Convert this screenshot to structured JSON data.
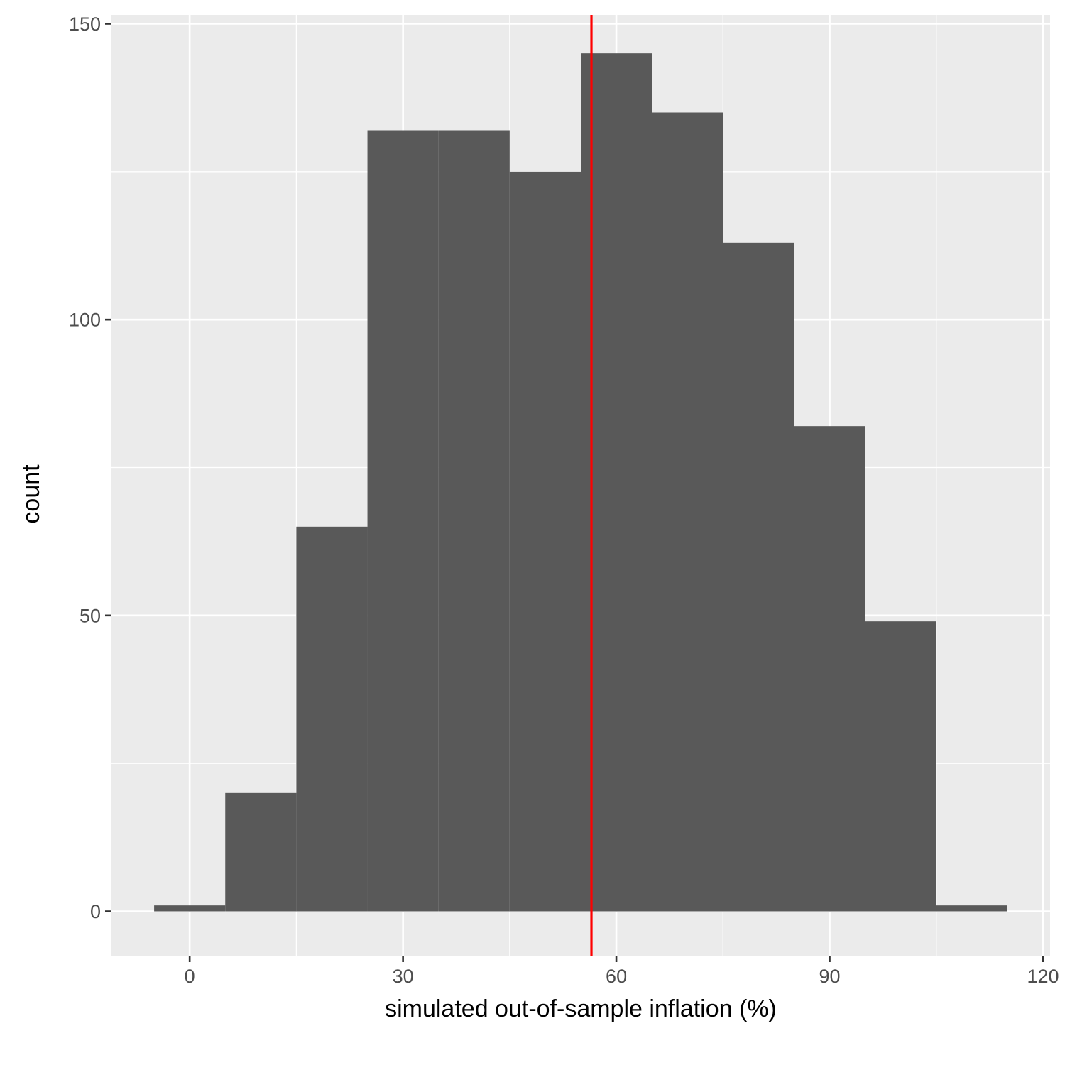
{
  "chart_data": {
    "type": "bar",
    "xlabel": "simulated out-of-sample inflation (%)",
    "ylabel": "count",
    "xlim": [
      -11,
      121
    ],
    "ylim": [
      -7.5,
      151.5
    ],
    "x_ticks": [
      0,
      30,
      60,
      90,
      120
    ],
    "y_ticks": [
      0,
      50,
      100,
      150
    ],
    "bins": [
      {
        "x0": -5,
        "x1": 5,
        "count": 1
      },
      {
        "x0": 5,
        "x1": 15,
        "count": 20
      },
      {
        "x0": 15,
        "x1": 25,
        "count": 65
      },
      {
        "x0": 25,
        "x1": 35,
        "count": 132
      },
      {
        "x0": 35,
        "x1": 45,
        "count": 132
      },
      {
        "x0": 45,
        "x1": 55,
        "count": 125
      },
      {
        "x0": 55,
        "x1": 65,
        "count": 145
      },
      {
        "x0": 65,
        "x1": 75,
        "count": 135
      },
      {
        "x0": 75,
        "x1": 85,
        "count": 113
      },
      {
        "x0": 85,
        "x1": 95,
        "count": 82
      },
      {
        "x0": 95,
        "x1": 105,
        "count": 49
      },
      {
        "x0": 105,
        "x1": 115,
        "count": 1
      }
    ],
    "vline": {
      "x": 56.5,
      "color": "#ff0000"
    },
    "bar_color": "#595959",
    "panel_color": "#ebebeb",
    "grid": true,
    "legend": "none"
  }
}
